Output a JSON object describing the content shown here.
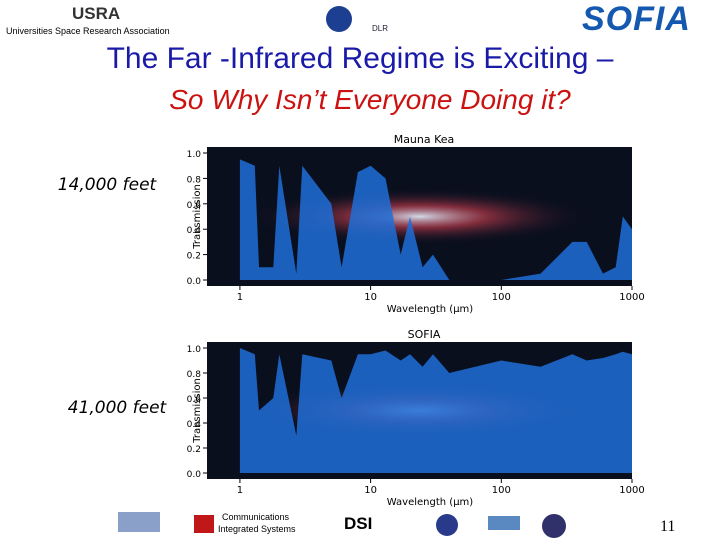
{
  "header": {
    "org_logo": "USRA",
    "org": "Universities Space Research Association",
    "partner": "DLR",
    "mission_logo": "SOFIA",
    "title": "The Far -Infrared Regime is Exciting –",
    "subtitle": "So Why Isn’t Everyone Doing it?"
  },
  "chart_data": [
    {
      "type": "area",
      "title": "Mauna Kea",
      "annotation": "14,000 feet",
      "x_label": "Wavelength (μm)",
      "y_label": "Transmission",
      "color": "#1f6fd8",
      "log_x": true,
      "x": [
        1,
        1.3,
        1.4,
        1.8,
        2,
        2.7,
        3,
        5,
        6,
        8,
        10,
        13,
        17,
        20,
        25,
        30,
        40,
        100,
        200,
        350,
        450,
        600,
        750,
        850,
        1000
      ],
      "values": [
        0.95,
        0.9,
        0.1,
        0.1,
        0.9,
        0.05,
        0.9,
        0.6,
        0.1,
        0.85,
        0.9,
        0.8,
        0.2,
        0.5,
        0.1,
        0.2,
        0.0,
        0.0,
        0.05,
        0.3,
        0.3,
        0.05,
        0.1,
        0.5,
        0.4
      ],
      "xlim": [
        0.56,
        1000
      ],
      "xticks": [
        1,
        10,
        100,
        1000
      ],
      "ylim": [
        0,
        1
      ],
      "yticks": [
        {
          "value": 0,
          "label": "0.0"
        },
        0.2,
        0.4,
        0.6,
        0.8,
        {
          "value": 1,
          "label": "1.0"
        }
      ]
    },
    {
      "type": "area",
      "title": "SOFIA",
      "annotation": "41,000 feet",
      "x_label": "Wavelength (μm)",
      "y_label": "Transmission",
      "color": "#1f6fd8",
      "log_x": true,
      "x": [
        1,
        1.3,
        1.4,
        1.8,
        2,
        2.7,
        3,
        5,
        6,
        8,
        10,
        13,
        17,
        20,
        25,
        30,
        40,
        100,
        200,
        350,
        450,
        600,
        750,
        850,
        1000
      ],
      "values": [
        1.0,
        0.95,
        0.5,
        0.6,
        0.95,
        0.3,
        0.95,
        0.9,
        0.6,
        0.95,
        0.95,
        0.98,
        0.9,
        0.95,
        0.85,
        0.95,
        0.8,
        0.9,
        0.85,
        0.95,
        0.9,
        0.92,
        0.95,
        0.97,
        0.95
      ],
      "xlim": [
        0.56,
        1000
      ],
      "xticks": [
        1,
        10,
        100,
        1000
      ],
      "ylim": [
        0,
        1
      ],
      "yticks": [
        {
          "value": 0,
          "label": "0.0"
        },
        0.2,
        0.4,
        0.6,
        0.8,
        {
          "value": 1,
          "label": "1.0"
        }
      ]
    }
  ],
  "footer": {
    "logo1": "Communications",
    "logo2": "Integrated Systems",
    "logo3": "DSI",
    "page": "11"
  }
}
